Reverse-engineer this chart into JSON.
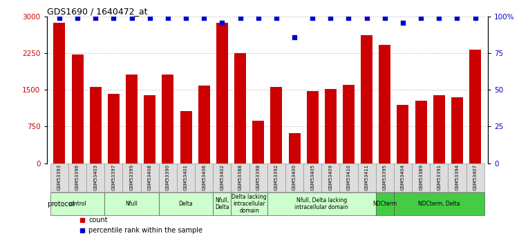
{
  "title": "GDS1690 / 1640472_at",
  "samples": [
    "GSM53393",
    "GSM53396",
    "GSM53403",
    "GSM53397",
    "GSM53399",
    "GSM53408",
    "GSM53390",
    "GSM53401",
    "GSM53406",
    "GSM53402",
    "GSM53388",
    "GSM53398",
    "GSM53392",
    "GSM53400",
    "GSM53405",
    "GSM53409",
    "GSM53410",
    "GSM53411",
    "GSM53395",
    "GSM53404",
    "GSM53389",
    "GSM53391",
    "GSM53394",
    "GSM53407"
  ],
  "counts": [
    2870,
    2220,
    1560,
    1420,
    1820,
    1390,
    1820,
    1070,
    1590,
    2870,
    2260,
    870,
    1560,
    620,
    1480,
    1520,
    1600,
    2620,
    2430,
    1200,
    1280,
    1390,
    1350,
    2330
  ],
  "percentile": [
    99,
    99,
    99,
    99,
    99,
    99,
    99,
    99,
    99,
    96,
    99,
    99,
    99,
    86,
    99,
    99,
    99,
    99,
    99,
    96,
    99,
    99,
    99,
    99
  ],
  "bar_color": "#cc0000",
  "dot_color": "#0000cc",
  "ylim_left": [
    0,
    3000
  ],
  "ylim_right": [
    0,
    100
  ],
  "yticks_left": [
    0,
    750,
    1500,
    2250,
    3000
  ],
  "yticks_right": [
    0,
    25,
    50,
    75,
    100
  ],
  "groups": [
    {
      "label": "control",
      "start": 0,
      "end": 2,
      "color": "#ccffcc"
    },
    {
      "label": "Nfull",
      "start": 3,
      "end": 5,
      "color": "#ccffcc"
    },
    {
      "label": "Delta",
      "start": 6,
      "end": 8,
      "color": "#ccffcc"
    },
    {
      "label": "Nfull,\nDelta",
      "start": 9,
      "end": 9,
      "color": "#ccffcc"
    },
    {
      "label": "Delta lacking\nintracellular\ndomain",
      "start": 10,
      "end": 11,
      "color": "#ccffcc"
    },
    {
      "label": "Nfull, Delta lacking\nintracellular domain",
      "start": 12,
      "end": 17,
      "color": "#ccffcc"
    },
    {
      "label": "NDCterm",
      "start": 18,
      "end": 18,
      "color": "#44cc44"
    },
    {
      "label": "NDCterm, Delta",
      "start": 19,
      "end": 23,
      "color": "#44cc44"
    }
  ],
  "protocol_label": "protocol",
  "legend_count_label": "count",
  "legend_pct_label": "percentile rank within the sample",
  "background_color": "#ffffff",
  "plot_bg_color": "#ffffff",
  "tick_label_color_left": "#cc0000",
  "tick_label_color_right": "#0000cc",
  "grid_color": "#aaaaaa",
  "xtick_bg": "#dddddd"
}
